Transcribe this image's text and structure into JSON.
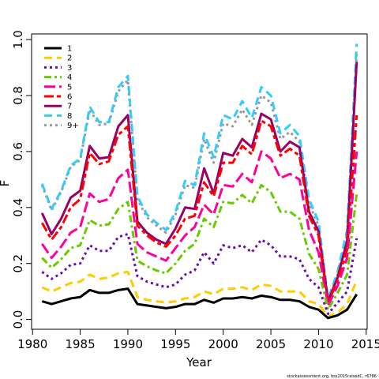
{
  "chart_data": {
    "type": "line",
    "title": "",
    "xlabel": "Year",
    "ylabel": "F",
    "xlim": [
      1981,
      2014
    ],
    "ylim": [
      0,
      1.0
    ],
    "xticks": [
      1980,
      1985,
      1990,
      1995,
      2000,
      2005,
      2010,
      2015
    ],
    "yticks": [
      0.0,
      0.2,
      0.4,
      0.6,
      0.8,
      1.0
    ],
    "xtick_labels": [
      "1980",
      "1985",
      "1990",
      "1995",
      "2000",
      "2005",
      "2010",
      "2015"
    ],
    "ytick_labels": [
      "0.0",
      "0.2",
      "0.4",
      "0.6",
      "0.8",
      "1.0"
    ],
    "grid": false,
    "legend_position": "top-left",
    "x": [
      1981,
      1982,
      1983,
      1984,
      1985,
      1986,
      1987,
      1988,
      1989,
      1990,
      1991,
      1992,
      1993,
      1994,
      1995,
      1996,
      1997,
      1998,
      1999,
      2000,
      2001,
      2002,
      2003,
      2004,
      2005,
      2006,
      2007,
      2008,
      2009,
      2010,
      2011,
      2012,
      2013,
      2014
    ],
    "series": [
      {
        "name": "1",
        "color": "#000000",
        "dash": "solid",
        "values": [
          0.065,
          0.055,
          0.065,
          0.075,
          0.08,
          0.105,
          0.095,
          0.095,
          0.105,
          0.11,
          0.055,
          0.05,
          0.045,
          0.04,
          0.045,
          0.055,
          0.055,
          0.07,
          0.06,
          0.075,
          0.075,
          0.08,
          0.075,
          0.085,
          0.08,
          0.07,
          0.07,
          0.065,
          0.045,
          0.035,
          0.005,
          0.015,
          0.035,
          0.09
        ]
      },
      {
        "name": "2",
        "color": "#ffcc00",
        "dash": "dash",
        "values": [
          0.115,
          0.1,
          0.115,
          0.13,
          0.135,
          0.16,
          0.145,
          0.15,
          0.165,
          0.17,
          0.08,
          0.07,
          0.065,
          0.06,
          0.065,
          0.075,
          0.08,
          0.1,
          0.09,
          0.11,
          0.11,
          0.115,
          0.105,
          0.125,
          0.12,
          0.1,
          0.1,
          0.1,
          0.065,
          0.055,
          0.01,
          0.025,
          0.055,
          0.14
        ]
      },
      {
        "name": "3",
        "color": "#6a0dad",
        "dash": "dot",
        "values": [
          0.17,
          0.145,
          0.165,
          0.195,
          0.2,
          0.265,
          0.245,
          0.245,
          0.295,
          0.305,
          0.155,
          0.135,
          0.125,
          0.115,
          0.125,
          0.16,
          0.175,
          0.24,
          0.2,
          0.265,
          0.255,
          0.265,
          0.24,
          0.285,
          0.265,
          0.225,
          0.225,
          0.215,
          0.145,
          0.115,
          0.02,
          0.06,
          0.1,
          0.29
        ]
      },
      {
        "name": "4",
        "color": "#66cc00",
        "dash": "dashdot",
        "values": [
          0.22,
          0.185,
          0.215,
          0.255,
          0.265,
          0.355,
          0.335,
          0.34,
          0.395,
          0.42,
          0.21,
          0.19,
          0.175,
          0.165,
          0.2,
          0.245,
          0.27,
          0.36,
          0.33,
          0.42,
          0.415,
          0.445,
          0.415,
          0.48,
          0.455,
          0.385,
          0.385,
          0.36,
          0.235,
          0.18,
          0.035,
          0.095,
          0.16,
          0.45
        ]
      },
      {
        "name": "5",
        "color": "#ff0099",
        "dash": "longdash",
        "values": [
          0.27,
          0.22,
          0.26,
          0.31,
          0.33,
          0.45,
          0.42,
          0.43,
          0.505,
          0.535,
          0.27,
          0.24,
          0.225,
          0.21,
          0.255,
          0.3,
          0.33,
          0.41,
          0.375,
          0.48,
          0.475,
          0.52,
          0.49,
          0.6,
          0.575,
          0.505,
          0.52,
          0.5,
          0.32,
          0.24,
          0.05,
          0.12,
          0.22,
          0.6
        ]
      },
      {
        "name": "6",
        "color": "#ff0000",
        "dash": "twodash",
        "values": [
          0.345,
          0.285,
          0.33,
          0.4,
          0.43,
          0.595,
          0.555,
          0.565,
          0.66,
          0.69,
          0.335,
          0.3,
          0.275,
          0.26,
          0.3,
          0.36,
          0.37,
          0.49,
          0.44,
          0.56,
          0.56,
          0.62,
          0.59,
          0.71,
          0.69,
          0.585,
          0.61,
          0.585,
          0.37,
          0.3,
          0.06,
          0.14,
          0.25,
          0.73
        ]
      },
      {
        "name": "7",
        "color": "#990066",
        "dash": "solid",
        "values": [
          0.38,
          0.305,
          0.36,
          0.435,
          0.46,
          0.62,
          0.575,
          0.58,
          0.69,
          0.73,
          0.35,
          0.31,
          0.285,
          0.27,
          0.325,
          0.4,
          0.395,
          0.54,
          0.45,
          0.595,
          0.585,
          0.645,
          0.615,
          0.735,
          0.715,
          0.6,
          0.635,
          0.615,
          0.385,
          0.315,
          0.065,
          0.15,
          0.28,
          0.92
        ]
      },
      {
        "name": "8",
        "color": "#33ccff",
        "dash": "dash",
        "values": [
          0.485,
          0.395,
          0.46,
          0.55,
          0.575,
          0.76,
          0.705,
          0.705,
          0.83,
          0.87,
          0.44,
          0.375,
          0.345,
          0.32,
          0.385,
          0.495,
          0.48,
          0.665,
          0.58,
          0.73,
          0.715,
          0.78,
          0.72,
          0.83,
          0.8,
          0.665,
          0.695,
          0.655,
          0.43,
          0.35,
          0.075,
          0.17,
          0.32,
          0.985
        ]
      },
      {
        "name": "9+",
        "color": "#999999",
        "dash": "dot",
        "values": [
          0.48,
          0.39,
          0.455,
          0.545,
          0.57,
          0.75,
          0.695,
          0.7,
          0.815,
          0.855,
          0.43,
          0.365,
          0.335,
          0.31,
          0.375,
          0.48,
          0.47,
          0.645,
          0.56,
          0.7,
          0.69,
          0.75,
          0.695,
          0.8,
          0.775,
          0.645,
          0.67,
          0.635,
          0.415,
          0.335,
          0.07,
          0.16,
          0.305,
          0.95
        ]
      }
    ],
    "credit": "stockassessment.org, bss2015raisedC, r6786"
  }
}
